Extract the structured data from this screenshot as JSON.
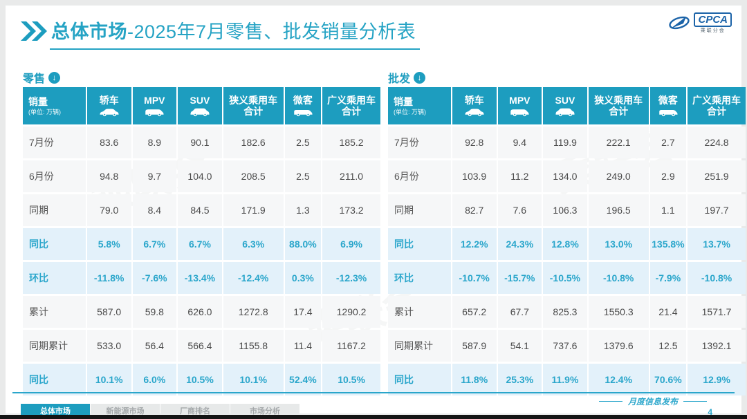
{
  "header": {
    "chevron_icon": "double-right-chevron",
    "title_bold": "总体市场",
    "title_rest": "-2025年7月零售、批发销量分析表",
    "logo": {
      "acronym": "CPCA",
      "subtext": "乘联分会",
      "icon": "cpca-swoosh"
    }
  },
  "columns": {
    "sales_title": "销量",
    "sales_unit": "(单位: 万辆)",
    "cols": [
      {
        "label": "轿车",
        "icon": "sedan-icon"
      },
      {
        "label": "MPV",
        "icon": "mpv-icon"
      },
      {
        "label": "SUV",
        "icon": "suv-icon"
      },
      {
        "label": "狭义乘用车\n合计",
        "icon": ""
      },
      {
        "label": "微客",
        "icon": "minivan-icon"
      },
      {
        "label": "广义乘用车\n合计",
        "icon": ""
      }
    ]
  },
  "tables": [
    {
      "name": "零售",
      "arrow_icon": "circle-down-arrow-icon",
      "rows": [
        {
          "label": "7月份",
          "highlight": false,
          "values": [
            "83.6",
            "8.9",
            "90.1",
            "182.6",
            "2.5",
            "185.2"
          ]
        },
        {
          "label": "6月份",
          "highlight": false,
          "values": [
            "94.8",
            "9.7",
            "104.0",
            "208.5",
            "2.5",
            "211.0"
          ]
        },
        {
          "label": "同期",
          "highlight": false,
          "values": [
            "79.0",
            "8.4",
            "84.5",
            "171.9",
            "1.3",
            "173.2"
          ]
        },
        {
          "label": "同比",
          "highlight": true,
          "values": [
            "5.8%",
            "6.7%",
            "6.7%",
            "6.3%",
            "88.0%",
            "6.9%"
          ]
        },
        {
          "label": "环比",
          "highlight": true,
          "values": [
            "-11.8%",
            "-7.6%",
            "-13.4%",
            "-12.4%",
            "0.3%",
            "-12.3%"
          ]
        },
        {
          "label": "累计",
          "highlight": false,
          "values": [
            "587.0",
            "59.8",
            "626.0",
            "1272.8",
            "17.4",
            "1290.2"
          ]
        },
        {
          "label": "同期累计",
          "highlight": false,
          "values": [
            "533.0",
            "56.4",
            "566.4",
            "1155.8",
            "11.4",
            "1167.2"
          ]
        },
        {
          "label": "同比",
          "highlight": true,
          "values": [
            "10.1%",
            "6.0%",
            "10.5%",
            "10.1%",
            "52.4%",
            "10.5%"
          ]
        }
      ]
    },
    {
      "name": "批发",
      "arrow_icon": "circle-down-arrow-icon",
      "rows": [
        {
          "label": "7月份",
          "highlight": false,
          "values": [
            "92.8",
            "9.4",
            "119.9",
            "222.1",
            "2.7",
            "224.8"
          ]
        },
        {
          "label": "6月份",
          "highlight": false,
          "values": [
            "103.9",
            "11.2",
            "134.0",
            "249.0",
            "2.9",
            "251.9"
          ]
        },
        {
          "label": "同期",
          "highlight": false,
          "values": [
            "82.7",
            "7.6",
            "106.3",
            "196.5",
            "1.1",
            "197.7"
          ]
        },
        {
          "label": "同比",
          "highlight": true,
          "values": [
            "12.2%",
            "24.3%",
            "12.8%",
            "13.0%",
            "135.8%",
            "13.7%"
          ]
        },
        {
          "label": "环比",
          "highlight": true,
          "values": [
            "-10.7%",
            "-15.7%",
            "-10.5%",
            "-10.8%",
            "-7.9%",
            "-10.8%"
          ]
        },
        {
          "label": "累计",
          "highlight": false,
          "values": [
            "657.2",
            "67.7",
            "825.3",
            "1550.3",
            "21.4",
            "1571.7"
          ]
        },
        {
          "label": "同期累计",
          "highlight": false,
          "values": [
            "587.9",
            "54.1",
            "737.6",
            "1379.6",
            "12.5",
            "1392.1"
          ]
        },
        {
          "label": "同比",
          "highlight": true,
          "values": [
            "11.8%",
            "25.3%",
            "11.9%",
            "12.4%",
            "70.6%",
            "12.9%"
          ]
        }
      ]
    }
  ],
  "footer": {
    "tabs": [
      {
        "label": "总体市场",
        "active": true
      },
      {
        "label": "新能源市场",
        "active": false
      },
      {
        "label": "厂商排名",
        "active": false
      },
      {
        "label": "市场分析",
        "active": false
      }
    ],
    "publication": "月度信息发布",
    "page": "4"
  },
  "colors": {
    "accent_teal": "#1d9dbf",
    "highlight_bg": "#e3f1fa",
    "highlight_text": "#2aa6cb",
    "brand_blue": "#1b63a8"
  },
  "watermark": "乘联会"
}
